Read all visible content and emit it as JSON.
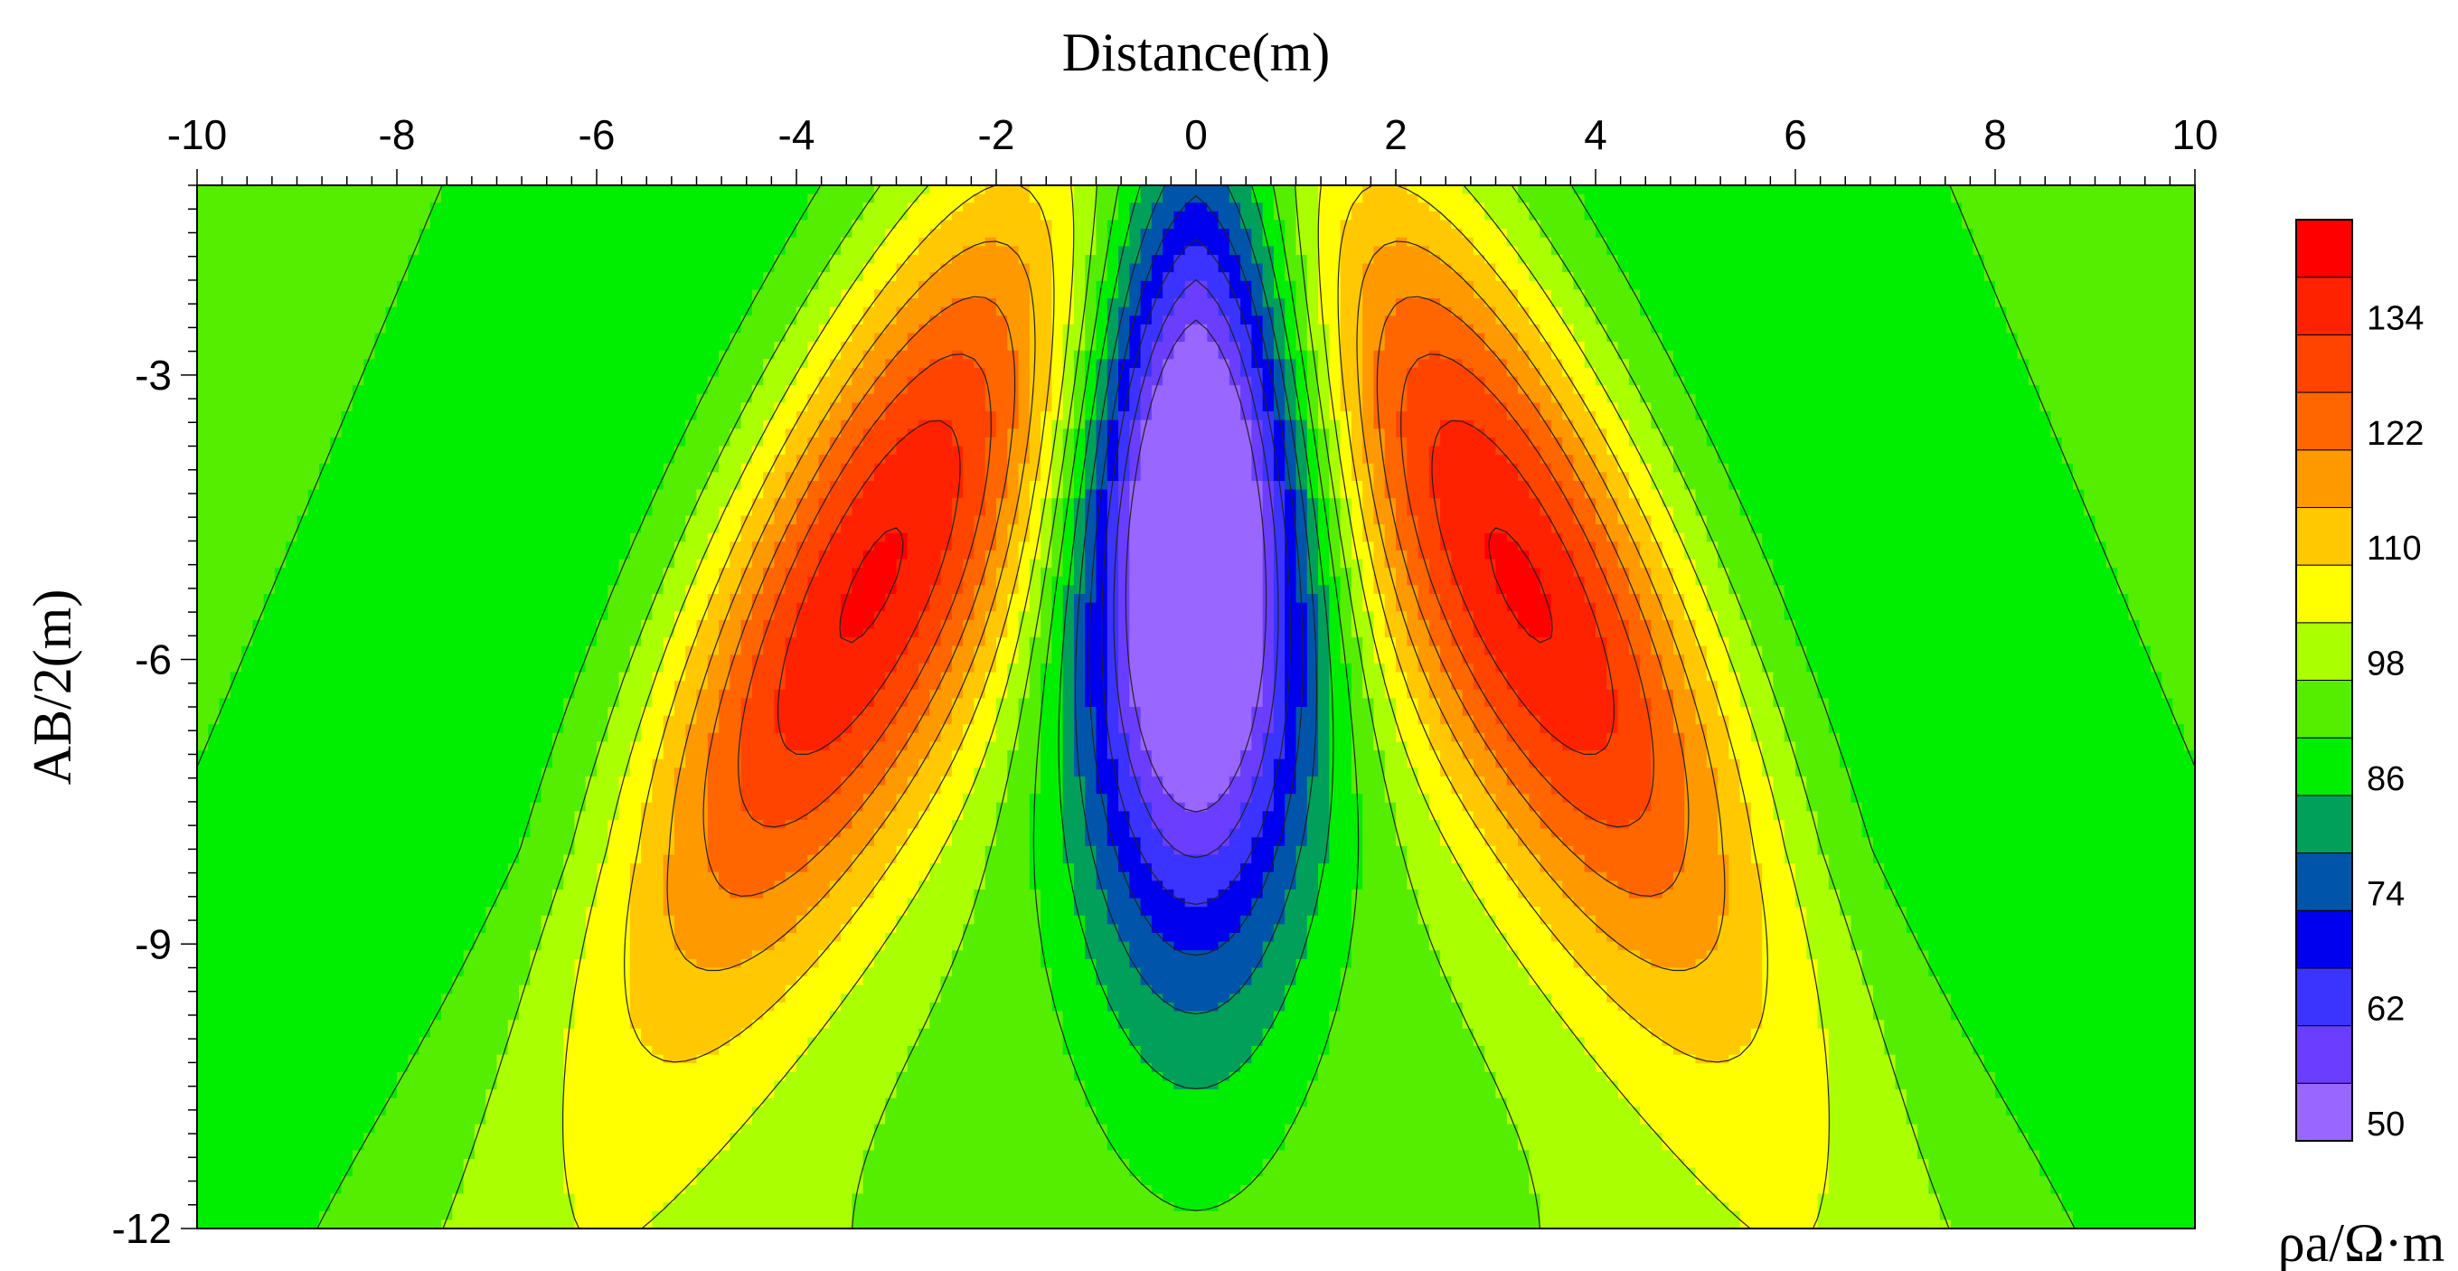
{
  "chart_data": {
    "type": "heatmap",
    "subtype": "filled-contour",
    "xlabel": "Distance(m)",
    "ylabel": "AB/2(m)",
    "colorbar_unit": "ρa/Ω·m",
    "x_axis_position": "top",
    "xlim": [
      -10,
      10
    ],
    "ylim": [
      -12,
      -1
    ],
    "x_ticks": [
      -10,
      -8,
      -6,
      -4,
      -2,
      0,
      2,
      4,
      6,
      8,
      10
    ],
    "y_ticks": [
      -3,
      -6,
      -9,
      -12
    ],
    "grid": false,
    "levels": [
      50,
      56,
      62,
      68,
      74,
      80,
      86,
      92,
      98,
      104,
      110,
      116,
      122,
      128,
      134,
      140,
      146
    ],
    "level_colors": [
      "#9966ff",
      "#6a3dff",
      "#3b33ff",
      "#0000ee",
      "#0055aa",
      "#00a05a",
      "#00ee00",
      "#55ee00",
      "#aaff00",
      "#ffff00",
      "#ffc800",
      "#ff9900",
      "#ff6600",
      "#ff4400",
      "#ff2200",
      "#ff0000"
    ],
    "colorbar_labels": [
      50,
      62,
      74,
      86,
      98,
      110,
      122,
      134
    ],
    "features": [
      {
        "kind": "low",
        "x": 0,
        "y": -4.8,
        "value": 50
      },
      {
        "kind": "high",
        "x": -4,
        "y": -5.2,
        "value": 134
      },
      {
        "kind": "high",
        "x": 4,
        "y": -5.2,
        "value": 134
      }
    ]
  }
}
